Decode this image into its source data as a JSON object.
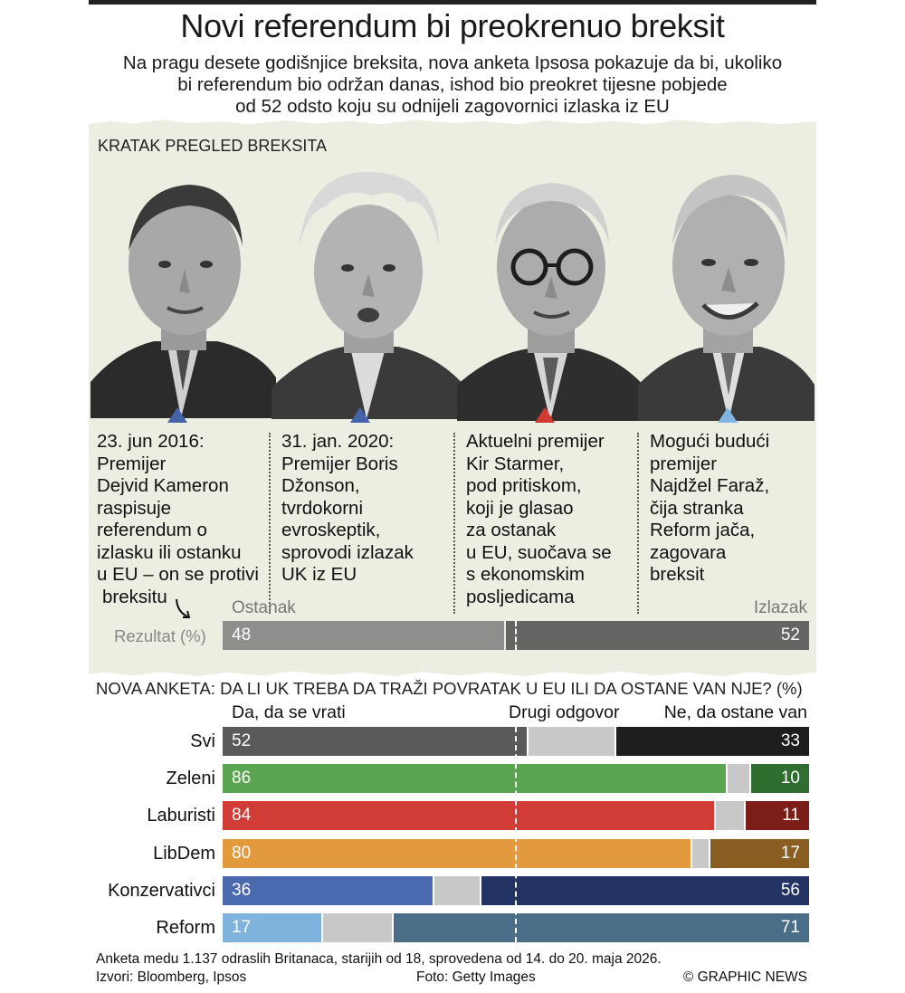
{
  "header": {
    "title": "Novi referendum bi preokrenuo breksit",
    "subtitle_lines": [
      "Na pragu desete godišnjice breksita, nova anketa Ipsosa pokazuje da bi, ukoliko",
      "bi referendum bio održan danas, ishod bio preokret tijesne pobjede",
      "od 52 odsto koju su odnijeli zagovornici izlaska iz EU"
    ]
  },
  "overview": {
    "label": "KRATAK PREGLED BREKSITA",
    "columns": [
      {
        "lines": [
          "23. jun 2016:",
          "Premijer",
          "Dejvid Kameron",
          "raspisuje",
          "referendum o",
          "izlasku ili ostanku",
          "u EU –  on se protivi",
          "breksitu"
        ],
        "marker_color": "#4463a8"
      },
      {
        "lines": [
          "31. jan. 2020:",
          "Premijer Boris",
          "Džonson,",
          "tvrdokorni",
          "evroskeptik,",
          "sprovodi izlazak",
          "UK iz EU"
        ],
        "marker_color": "#4463a8"
      },
      {
        "lines": [
          "Aktuelni premijer",
          "Kir Starmer,",
          "pod pritiskom,",
          "koji je glasao",
          "za ostanak",
          "u EU, suočava se",
          "s ekonomskim",
          "posljedicama"
        ],
        "marker_color": "#d03a33"
      },
      {
        "lines": [
          "Mogući budući",
          "premijer",
          "Najdžel Faraž,",
          "čija stranka",
          "Reform jača,",
          "zagovara",
          "breksit"
        ],
        "marker_color": "#7fb3e0"
      }
    ]
  },
  "result": {
    "row_label": "Rezultat (%)",
    "left_label": "Ostanak",
    "right_label": "Izlazak",
    "ostanak": 48,
    "izlazak": 52,
    "ostanak_text": "48",
    "izlazak_text": "52"
  },
  "chart_data": {
    "type": "bar",
    "stacked": true,
    "orientation": "horizontal",
    "title": "NOVA ANKETA: DA LI UK TREBA DA TRAŽI POVRATAK U EU ILI DA OSTANE VAN NJE? (%)",
    "series_headers": [
      "Da, da se vrati",
      "Drugi odgovor",
      "Ne, da ostane van"
    ],
    "rows": [
      {
        "label": "Svi",
        "da": 52,
        "ne": 33,
        "da_text": "52",
        "ne_text": "33",
        "color_da": "#5a5a5a",
        "color_ne": "#1e1e1e"
      },
      {
        "label": "Zeleni",
        "da": 86,
        "ne": 10,
        "da_text": "86",
        "ne_text": "10",
        "color_da": "#5aa54f",
        "color_ne": "#2f6e2e"
      },
      {
        "label": "Laburisti",
        "da": 84,
        "ne": 11,
        "da_text": "84",
        "ne_text": "11",
        "color_da": "#d23c36",
        "color_ne": "#7c1d18"
      },
      {
        "label": "LibDem",
        "da": 80,
        "ne": 17,
        "da_text": "80",
        "ne_text": "17",
        "color_da": "#e39a3d",
        "color_ne": "#8a5e22"
      },
      {
        "label": "Konzervativci",
        "da": 36,
        "ne": 56,
        "da_text": "36",
        "ne_text": "56",
        "color_da": "#4a6ab0",
        "color_ne": "#233363"
      },
      {
        "label": "Reform",
        "da": 17,
        "ne": 71,
        "da_text": "17",
        "ne_text": "71",
        "color_da": "#7fb2dd",
        "color_ne": "#4a6e87"
      }
    ],
    "other_color": "#c8c8c8",
    "xlim": [
      0,
      100
    ]
  },
  "footer": {
    "note": "Anketa medu 1.137 odraslih Britanaca, starijih od 18, sprovedena od 14. do 20. maja 2026.",
    "sources": "Izvori: Bloomberg, Ipsos",
    "photo": "Foto: Getty Images",
    "copyright": "© GRAPHIC NEWS"
  }
}
